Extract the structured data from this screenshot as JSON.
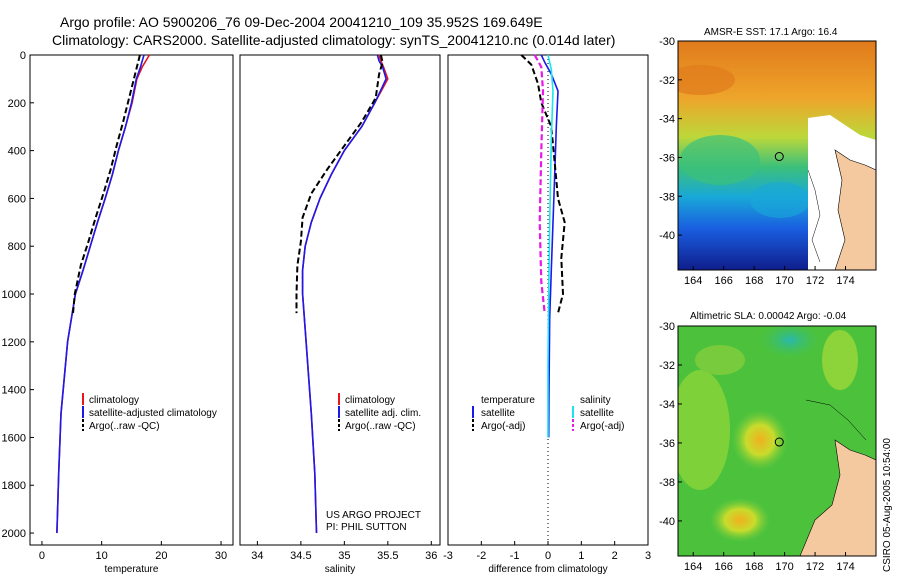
{
  "header": {
    "line1": "Argo profile: AO 5900206_76 09-Dec-2004 20041210_109 35.952S 169.649E",
    "line2": "Climatology: CARS2000. Satellite-adjusted climatology: synTS_20041210.nc (0.014d later)"
  },
  "credit": {
    "project": "US ARGO PROJECT",
    "pi": "PI: PHIL SUTTON"
  },
  "stamp": "CSIRO 05-Aug-2005 10:54:00",
  "colors": {
    "climatology": "#e8141e",
    "satellite": "#1a1aee",
    "argo": "#000000",
    "satellite_salinity": "#19e6ee",
    "argo_salinity": "#e619e6"
  },
  "chart_data": [
    {
      "id": "temperature",
      "type": "line",
      "xlabel": "temperature",
      "xlim": [
        -2,
        32
      ],
      "ylim": [
        2050,
        0
      ],
      "xticks": [
        0,
        10,
        20,
        30
      ],
      "yticks": [
        0,
        200,
        400,
        600,
        800,
        1000,
        1200,
        1400,
        1600,
        1800,
        2000
      ],
      "legend": [
        "climatology",
        "satellite-adjusted climatology",
        "Argo(..raw -QC)"
      ],
      "series": [
        {
          "name": "climatology",
          "style": "climatology",
          "x": [
            18.0,
            17.4,
            16.8,
            15.9,
            15.1,
            14.0,
            12.8,
            11.8,
            10.6,
            9.3,
            8.1,
            6.9,
            5.6,
            4.3,
            3.2,
            2.8,
            2.5
          ],
          "y": [
            0,
            25,
            50,
            100,
            200,
            300,
            400,
            500,
            600,
            700,
            800,
            900,
            1000,
            1200,
            1500,
            1750,
            2000
          ]
        },
        {
          "name": "satellite-adjusted climatology",
          "style": "satellite",
          "x": [
            17.1,
            16.8,
            16.5,
            15.8,
            15.0,
            14.0,
            12.8,
            11.8,
            10.6,
            9.3,
            8.1,
            6.9,
            5.6,
            4.3,
            3.2,
            2.8,
            2.5
          ],
          "y": [
            0,
            25,
            50,
            100,
            200,
            300,
            400,
            500,
            600,
            700,
            800,
            900,
            1000,
            1200,
            1500,
            1750,
            2000
          ]
        },
        {
          "name": "Argo(..raw -QC)",
          "style": "argo",
          "x": [
            16.4,
            16.1,
            15.6,
            14.6,
            13.6,
            12.5,
            11.5,
            10.3,
            9.0,
            7.8,
            6.5,
            5.5,
            5.2
          ],
          "y": [
            0,
            30,
            80,
            180,
            280,
            380,
            480,
            580,
            680,
            780,
            880,
            1000,
            1080
          ]
        }
      ]
    },
    {
      "id": "salinity",
      "type": "line",
      "xlabel": "salinity",
      "xlim": [
        33.8,
        36.1
      ],
      "ylim": [
        2050,
        0
      ],
      "xticks": [
        34,
        34.5,
        35,
        35.5,
        36
      ],
      "yticks": [],
      "legend": [
        "climatology",
        "satellite adj. clim.",
        "Argo(..raw -QC)"
      ],
      "series": [
        {
          "name": "climatology",
          "style": "climatology",
          "x": [
            35.4,
            35.42,
            35.45,
            35.5,
            35.35,
            35.2,
            35.0,
            34.85,
            34.72,
            34.62,
            34.55,
            34.52,
            34.52,
            34.56,
            34.62,
            34.66,
            34.68
          ],
          "y": [
            0,
            25,
            50,
            100,
            200,
            300,
            400,
            500,
            600,
            700,
            800,
            900,
            1000,
            1200,
            1500,
            1750,
            2000
          ]
        },
        {
          "name": "satellite adj. clim.",
          "style": "satellite",
          "x": [
            35.38,
            35.4,
            35.44,
            35.48,
            35.35,
            35.2,
            35.0,
            34.85,
            34.72,
            34.62,
            34.55,
            34.52,
            34.52,
            34.56,
            34.62,
            34.66,
            34.68
          ],
          "y": [
            0,
            25,
            50,
            100,
            200,
            300,
            400,
            500,
            600,
            700,
            800,
            900,
            1000,
            1200,
            1500,
            1750,
            2000
          ]
        },
        {
          "name": "Argo(..raw -QC)",
          "style": "argo",
          "x": [
            35.42,
            35.44,
            35.4,
            35.36,
            35.2,
            35.0,
            34.8,
            34.62,
            34.52,
            34.5,
            34.46,
            34.45,
            34.45
          ],
          "y": [
            0,
            30,
            80,
            180,
            280,
            380,
            480,
            580,
            680,
            780,
            880,
            1000,
            1080
          ]
        }
      ]
    },
    {
      "id": "difference",
      "type": "line",
      "xlabel": "difference from climatology",
      "xlim": [
        -3,
        3
      ],
      "ylim": [
        2050,
        0
      ],
      "xticks": [
        -3,
        -2,
        -1,
        0,
        1,
        2,
        3
      ],
      "yticks": [],
      "legend_temperature_title": "temperature",
      "legend_salinity_title": "salinity",
      "legend": [
        "satellite",
        "Argo(-adj)",
        "satellite",
        "Argo(-adj)"
      ],
      "series": [
        {
          "name": "temperature satellite",
          "style": "satellite",
          "x": [
            -0.2,
            -0.1,
            0.1,
            0.3,
            0.25,
            0.2,
            0.15,
            0.1,
            0.05,
            0.03,
            0.02
          ],
          "y": [
            0,
            30,
            80,
            150,
            300,
            500,
            700,
            900,
            1100,
            1400,
            1600
          ]
        },
        {
          "name": "temperature Argo(-adj)",
          "style": "argo",
          "x": [
            -0.8,
            -0.5,
            -0.3,
            -0.2,
            0.1,
            0.2,
            0.3,
            0.5,
            0.4,
            0.45,
            0.3
          ],
          "y": [
            0,
            40,
            120,
            200,
            300,
            450,
            600,
            700,
            850,
            1000,
            1080
          ]
        },
        {
          "name": "salinity satellite",
          "style": "satellite_salinity",
          "x": [
            0.0,
            0.1,
            0.15,
            0.1,
            0.05,
            0.02,
            0.0,
            0.0
          ],
          "y": [
            0,
            60,
            150,
            350,
            700,
            1000,
            1300,
            1600
          ]
        },
        {
          "name": "salinity Argo(-adj)",
          "style": "argo_salinity",
          "x": [
            -0.4,
            -0.2,
            -0.15,
            -0.2,
            -0.25,
            -0.2,
            -0.1
          ],
          "y": [
            0,
            50,
            150,
            400,
            700,
            950,
            1080
          ]
        }
      ]
    },
    {
      "id": "sst-map",
      "type": "heatmap",
      "title": "AMSR-E SST: 17.1 Argo: 16.4",
      "xticks": [
        164,
        166,
        168,
        170,
        172,
        174
      ],
      "yticks": [
        -30,
        -32,
        -34,
        -36,
        -38,
        -40
      ],
      "xlim": [
        163,
        176
      ],
      "ylim": [
        -41.8,
        -30
      ],
      "argo_position": [
        169.649,
        -35.952
      ]
    },
    {
      "id": "sla-map",
      "type": "heatmap",
      "title": "Altimetric SLA: 0.00042 Argo: -0.04",
      "xticks": [
        164,
        166,
        168,
        170,
        172,
        174
      ],
      "yticks": [
        -30,
        -32,
        -34,
        -36,
        -38,
        -40
      ],
      "xlim": [
        163,
        176
      ],
      "ylim": [
        -41.8,
        -30
      ],
      "argo_position": [
        169.649,
        -35.952
      ]
    }
  ]
}
